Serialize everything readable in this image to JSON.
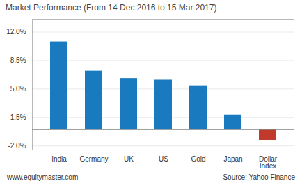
{
  "chart_data": {
    "type": "bar",
    "title": "Market Performance (From 14 Dec 2016 to 15 Mar 2017)",
    "categories": [
      "India",
      "Germany",
      "UK",
      "US",
      "Gold",
      "Japan",
      "Dollar\nIndex"
    ],
    "values": [
      10.8,
      7.2,
      6.3,
      6.1,
      5.4,
      1.8,
      -1.3
    ],
    "colors": [
      "#1a7abf",
      "#1a7abf",
      "#1a7abf",
      "#1a7abf",
      "#1a7abf",
      "#1a7abf",
      "#c0392b"
    ],
    "ylim": [
      -2.5,
      13.5
    ],
    "yticks": [
      {
        "value": -2.0,
        "label": "-2.0%"
      },
      {
        "value": 1.5,
        "label": "1.5%"
      },
      {
        "value": 5.0,
        "label": "5.0%"
      },
      {
        "value": 8.5,
        "label": "8.5%"
      },
      {
        "value": 12.0,
        "label": "12.0%"
      }
    ],
    "grid": true,
    "annotations": [
      "www.equitymaster.com",
      "Source: Yahoo Finance"
    ]
  }
}
